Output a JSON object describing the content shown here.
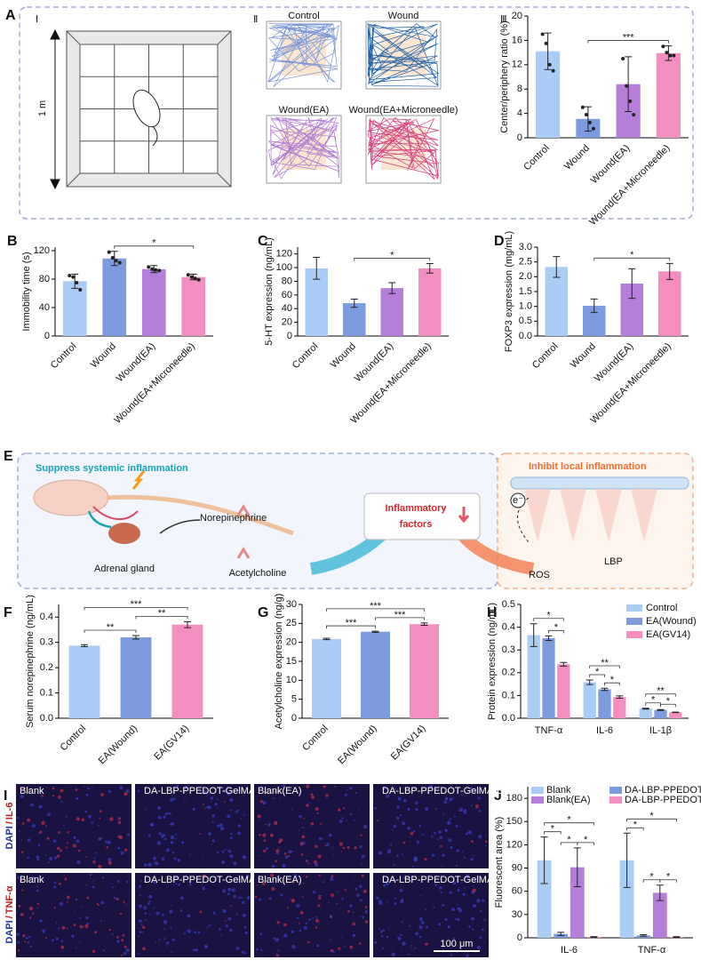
{
  "panel_letters": [
    "A",
    "B",
    "C",
    "D",
    "E",
    "F",
    "G",
    "H",
    "I",
    "J"
  ],
  "panel_A": {
    "roman": [
      "Ⅰ",
      "Ⅱ",
      "Ⅲ"
    ],
    "scale_label": "1 m",
    "track_labels": [
      "Control",
      "Wound",
      "Wound(EA)",
      "Wound(EA+Microneedle)"
    ]
  },
  "panel_E": {
    "left_title": "Suppress systemic inflammation",
    "right_title": "Inhibit local inflammation",
    "center_lines": [
      "Inflammatory",
      "factors"
    ],
    "norepinephrine": "Norepinephrine",
    "acetylcholine": "Acetylcholine",
    "adrenal_gland": "Adrenal gland",
    "lbp": "LBP",
    "ros": "ROS",
    "electron": "e⁻"
  },
  "panel_I": {
    "row_labels": [
      {
        "stain": "DAPI",
        "marker": "IL-6"
      },
      {
        "stain": "DAPI",
        "marker": "TNF-α"
      }
    ],
    "separator": "/",
    "image_labels": [
      [
        "Blank",
        "DA-LBP-PPEDOT-GelMA",
        "Blank(EA)",
        "DA-LBP-PPEDOT-GelMA(EA)"
      ],
      [
        "Blank",
        "DA-LBP-PPEDOT-GelMA",
        "Blank(EA)",
        "DA-LBP-PPEDOT-GelMA(EA)"
      ]
    ],
    "scale_bar": "100 μm"
  },
  "chart_data": [
    {
      "type": "bar",
      "ylabel": "Center/periphery ratio (%)",
      "categories": [
        "Control",
        "Wound",
        "Wound(EA)",
        "Wound(EA+Microneedle)"
      ],
      "values": [
        14.2,
        3.1,
        8.8,
        13.9
      ],
      "errors": [
        3,
        2,
        4.5,
        1.2
      ],
      "points": [
        [
          17,
          15.5,
          12,
          11
        ],
        [
          5,
          3.8,
          2.5,
          1.5
        ],
        [
          13,
          8.5,
          6,
          3.8
        ],
        [
          15,
          14,
          13.5,
          13.5
        ]
      ],
      "colors": [
        "#a9cdf5",
        "#7d9ce0",
        "#b57ed8",
        "#f58ec0"
      ],
      "ylim": [
        0,
        20
      ],
      "yticks": [
        0,
        4,
        8,
        12,
        16,
        20
      ],
      "significance": [
        {
          "from": "Wound",
          "to": "Wound(EA+Microneedle)",
          "label": "***"
        }
      ]
    },
    {
      "type": "bar",
      "ylabel": "Immobility time (s)",
      "categories": [
        "Control",
        "Wound",
        "Wound(EA)",
        "Wound(EA+Microneedle)"
      ],
      "values": [
        77,
        109,
        94,
        83
      ],
      "errors": [
        10,
        10,
        5,
        4
      ],
      "points": [
        [
          85,
          83,
          75,
          65
        ],
        [
          118,
          110,
          106,
          103
        ],
        [
          97,
          94,
          93,
          92
        ],
        [
          86,
          83,
          81,
          79
        ]
      ],
      "colors": [
        "#a9cdf5",
        "#7d9ce0",
        "#b57ed8",
        "#f58ec0"
      ],
      "ylim": [
        0,
        125
      ],
      "yticks": [
        0,
        40,
        80,
        120
      ],
      "significance": [
        {
          "from": "Wound",
          "to": "Wound(EA+Microneedle)",
          "label": "*"
        }
      ]
    },
    {
      "type": "bar",
      "ylabel": "5-HT expression (ng/mL)",
      "categories": [
        "Control",
        "Wound",
        "Wound(EA)",
        "Wound(EA+Microneedle)"
      ],
      "values": [
        99,
        48,
        70,
        99
      ],
      "errors": [
        16,
        6,
        8,
        7
      ],
      "colors": [
        "#a9cdf5",
        "#7d9ce0",
        "#b57ed8",
        "#f58ec0"
      ],
      "ylim": [
        0,
        130
      ],
      "yticks": [
        0,
        20,
        40,
        60,
        80,
        100,
        120
      ],
      "significance": [
        {
          "from": "Wound",
          "to": "Wound(EA+Microneedle)",
          "label": "*"
        }
      ]
    },
    {
      "type": "bar",
      "ylabel": "FOXP3 expression (mg/mL)",
      "categories": [
        "Control",
        "Wound",
        "Wound(EA)",
        "Wound(EA+Microneedle)"
      ],
      "values": [
        2.33,
        1.02,
        1.77,
        2.18
      ],
      "errors": [
        0.35,
        0.23,
        0.5,
        0.27
      ],
      "colors": [
        "#a9cdf5",
        "#7d9ce0",
        "#b57ed8",
        "#f58ec0"
      ],
      "ylim": [
        0,
        3
      ],
      "yticks": [
        {
          "value": 0,
          "label": "0.0"
        },
        0.5,
        {
          "value": 1,
          "label": "1.0"
        },
        1.5,
        {
          "value": 2,
          "label": "2.0"
        },
        2.5,
        {
          "value": 3,
          "label": "3.0"
        }
      ],
      "significance": [
        {
          "from": "Wound",
          "to": "Wound(EA+Microneedle)",
          "label": "*"
        }
      ]
    },
    {
      "type": "bar",
      "ylabel": "Serum norepinephrine (ng/mL)",
      "categories": [
        "Control",
        "EA(Wound)",
        "EA(GV14)"
      ],
      "values": [
        0.287,
        0.32,
        0.37
      ],
      "errors": [
        0.004,
        0.007,
        0.012
      ],
      "colors": [
        "#a9cdf5",
        "#7d9ce0",
        "#f58ec0"
      ],
      "ylim": [
        0,
        0.45
      ],
      "yticks": [
        {
          "value": 0,
          "label": "0.0"
        },
        0.1,
        0.2,
        0.3,
        0.4
      ],
      "significance": [
        {
          "from": "Control",
          "to": "EA(Wound)",
          "label": "**"
        },
        {
          "from": "EA(Wound)",
          "to": "EA(GV14)",
          "label": "**"
        },
        {
          "from": "Control",
          "to": "EA(GV14)",
          "label": "***"
        }
      ]
    },
    {
      "type": "bar",
      "ylabel": "Acetylcholine expression (ng/g)",
      "categories": [
        "Control",
        "EA(Wound)",
        "EA(GV14)"
      ],
      "values": [
        20.9,
        22.8,
        24.8
      ],
      "errors": [
        0.2,
        0.15,
        0.3
      ],
      "colors": [
        "#a9cdf5",
        "#7d9ce0",
        "#f58ec0"
      ],
      "ylim": [
        0,
        30
      ],
      "yticks": [
        0,
        5,
        10,
        15,
        20,
        25,
        30
      ],
      "significance": [
        {
          "from": "Control",
          "to": "EA(Wound)",
          "label": "***"
        },
        {
          "from": "EA(Wound)",
          "to": "EA(GV14)",
          "label": "***"
        },
        {
          "from": "Control",
          "to": "EA(GV14)",
          "label": "***"
        }
      ]
    },
    {
      "type": "grouped_bar",
      "ylabel": "Protein expression (ng/mL)",
      "categories": [
        "TNF-α",
        "IL-6",
        "IL-1β"
      ],
      "series": [
        {
          "name": "Control",
          "color": "#a9cdf5",
          "values": [
            0.365,
            0.158,
            0.042
          ],
          "errors": [
            0.05,
            0.01,
            0.002
          ]
        },
        {
          "name": "EA(Wound)",
          "color": "#7d9ce0",
          "values": [
            0.352,
            0.127,
            0.036
          ],
          "errors": [
            0.01,
            0.005,
            0.002
          ]
        },
        {
          "name": "EA(GV14)",
          "color": "#f58ec0",
          "values": [
            0.237,
            0.093,
            0.026
          ],
          "errors": [
            0.008,
            0.005,
            0.001
          ]
        }
      ],
      "ylim": [
        0,
        0.5
      ],
      "yticks": [
        {
          "value": 0,
          "label": "0.0"
        },
        0.1,
        0.2,
        0.3,
        0.4,
        0.5
      ],
      "legend": "upper right",
      "significance": [
        {
          "category": "TNF-α",
          "from": "EA(Wound)",
          "to": "EA(GV14)",
          "label": "*"
        },
        {
          "category": "TNF-α",
          "from": "Control",
          "to": "EA(GV14)",
          "label": "*"
        },
        {
          "category": "IL-6",
          "from": "EA(Wound)",
          "to": "EA(GV14)",
          "label": "*"
        },
        {
          "category": "IL-6",
          "from": "Control",
          "to": "EA(Wound)",
          "label": "*"
        },
        {
          "category": "IL-6",
          "from": "Control",
          "to": "EA(GV14)",
          "label": "**"
        },
        {
          "category": "IL-1β",
          "from": "EA(Wound)",
          "to": "EA(GV14)",
          "label": "*"
        },
        {
          "category": "IL-1β",
          "from": "Control",
          "to": "EA(Wound)",
          "label": "*"
        },
        {
          "category": "IL-1β",
          "from": "Control",
          "to": "EA(GV14)",
          "label": "**"
        }
      ]
    },
    {
      "type": "grouped_bar",
      "ylabel": "Fluorescent area (%)",
      "categories": [
        "IL-6",
        "TNF-α"
      ],
      "series": [
        {
          "name": "Blank",
          "color": "#a9cdf5",
          "values": [
            100,
            100
          ],
          "errors": [
            30,
            35
          ]
        },
        {
          "name": "DA-LBP-PPEDOT-GelMA",
          "color": "#7d9ce0",
          "values": [
            5,
            3
          ],
          "errors": [
            2,
            1
          ]
        },
        {
          "name": "Blank(EA)",
          "color": "#b57ed8",
          "values": [
            91,
            58
          ],
          "errors": [
            25,
            10
          ]
        },
        {
          "name": "DA-LBP-PPEDOT-GelMA(EA)",
          "color": "#f58ec0",
          "values": [
            1,
            1
          ],
          "errors": [
            0.5,
            0.5
          ]
        }
      ],
      "ylim": [
        0,
        195
      ],
      "yticks": [
        0,
        30,
        60,
        90,
        120,
        150,
        180
      ],
      "legend": "upper center",
      "significance": [
        {
          "category": "IL-6",
          "from": "Blank",
          "to": "DA-LBP-PPEDOT-GelMA",
          "label": "*"
        },
        {
          "category": "IL-6",
          "from": "DA-LBP-PPEDOT-GelMA",
          "to": "Blank(EA)",
          "label": "*"
        },
        {
          "category": "IL-6",
          "from": "Blank(EA)",
          "to": "DA-LBP-PPEDOT-GelMA(EA)",
          "label": "*"
        },
        {
          "category": "IL-6",
          "from": "Blank",
          "to": "DA-LBP-PPEDOT-GelMA(EA)",
          "label": "*"
        },
        {
          "category": "TNF-α",
          "from": "Blank",
          "to": "DA-LBP-PPEDOT-GelMA",
          "label": "*"
        },
        {
          "category": "TNF-α",
          "from": "DA-LBP-PPEDOT-GelMA",
          "to": "Blank(EA)",
          "label": "*"
        },
        {
          "category": "TNF-α",
          "from": "Blank(EA)",
          "to": "DA-LBP-PPEDOT-GelMA(EA)",
          "label": "*"
        },
        {
          "category": "TNF-α",
          "from": "Blank",
          "to": "DA-LBP-PPEDOT-GelMA(EA)",
          "label": "*"
        }
      ]
    }
  ]
}
